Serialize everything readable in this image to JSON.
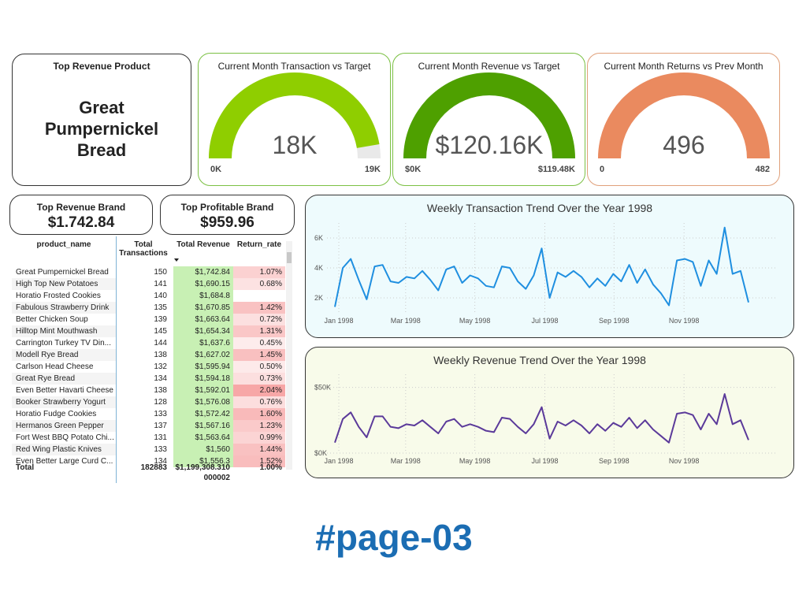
{
  "cards": {
    "top_revenue_product": {
      "title": "Top Revenue Product",
      "value": "Great Pumpernickel Bread"
    },
    "top_revenue_brand": {
      "title": "Top Revenue Brand",
      "value": "$1.742.84"
    },
    "top_profitable_brand": {
      "title": "Top Profitable Brand",
      "value": "$959.96"
    }
  },
  "gauges": [
    {
      "title": "Current Month Transaction vs Target",
      "value": 18000,
      "value_label": "18K",
      "min": {
        "value": 0,
        "label": "0K"
      },
      "max": {
        "value": 19000,
        "label": "19K"
      },
      "color": "#8fce00",
      "border": "#7bc043"
    },
    {
      "title": "Current Month Revenue vs Target",
      "value": 120160,
      "value_label": "$120.16K",
      "min": {
        "value": 0,
        "label": "$0K"
      },
      "max": {
        "value": 119480,
        "label": "$119.48K"
      },
      "color": "#4ea000",
      "border": "#7bc043"
    },
    {
      "title": "Current Month Returns vs Prev Month",
      "value": 496,
      "min": 0,
      "max": 482,
      "color": "#ea8a5f",
      "border": "#e0a07a"
    }
  ],
  "table": {
    "columns": [
      "product_name",
      "Total Transactions",
      "Total Revenue",
      "Return_rate"
    ],
    "rows": [
      [
        "Great Pumpernickel Bread",
        "150",
        "$1,742.84",
        "1.07%"
      ],
      [
        "High Top New Potatoes",
        "141",
        "$1,690.15",
        "0.68%"
      ],
      [
        "Horatio Frosted Cookies",
        "140",
        "$1,684.8",
        null
      ],
      [
        "Fabulous Strawberry Drink",
        "135",
        "$1,670.85",
        "1.42%"
      ],
      [
        "Better Chicken Soup",
        "139",
        "$1,663.64",
        "0.72%"
      ],
      [
        "Hilltop Mint Mouthwash",
        "145",
        "$1,654.34",
        "1.31%"
      ],
      [
        "Carrington Turkey TV Din...",
        "144",
        "$1,637.6",
        "0.45%"
      ],
      [
        "Modell Rye Bread",
        "138",
        "$1,627.02",
        "1.45%"
      ],
      [
        "Carlson Head Cheese",
        "132",
        "$1,595.94",
        "0.50%"
      ],
      [
        "Great Rye Bread",
        "134",
        "$1,594.18",
        "0.73%"
      ],
      [
        "Even Better Havarti Cheese",
        "138",
        "$1,592.01",
        "2.04%"
      ],
      [
        "Booker Strawberry Yogurt",
        "128",
        "$1,576.08",
        "0.76%"
      ],
      [
        "Horatio Fudge Cookies",
        "133",
        "$1,572.42",
        "1.60%"
      ],
      [
        "Hermanos Green Pepper",
        "137",
        "$1,567.16",
        "1.23%"
      ],
      [
        "Fort West BBQ Potato Chi...",
        "131",
        "$1,563.64",
        "0.99%"
      ],
      [
        "Red Wing Plastic Knives",
        "133",
        "$1,560",
        "1.44%"
      ],
      [
        "Even Better Large Curd C...",
        "134",
        "$1,556.3",
        "1.52%"
      ]
    ],
    "total": [
      "Total",
      "182883",
      "$1,199,308.310000002",
      "1.00%"
    ]
  },
  "chart_data": [
    {
      "type": "line",
      "title": "Weekly Transaction Trend Over the Year 1998",
      "x": [
        0,
        1,
        2,
        3,
        4,
        5,
        6,
        7,
        8,
        9,
        10,
        11,
        12,
        13,
        14,
        15,
        16,
        17,
        18,
        19,
        20,
        21,
        22,
        23,
        24,
        25,
        26,
        27,
        28,
        29,
        30,
        31,
        32,
        33,
        34,
        35,
        36,
        37,
        38,
        39,
        40,
        41,
        42,
        43,
        44,
        45,
        46,
        47,
        48,
        49,
        50,
        51,
        52
      ],
      "values": [
        1400,
        4000,
        4600,
        3200,
        1900,
        4100,
        4200,
        3100,
        3000,
        3400,
        3300,
        3800,
        3200,
        2500,
        3900,
        4100,
        3000,
        3500,
        3300,
        2800,
        2700,
        4100,
        4000,
        3100,
        2600,
        3500,
        5300,
        2000,
        3700,
        3400,
        3800,
        3400,
        2700,
        3300,
        2800,
        3600,
        3100,
        4200,
        3000,
        3900,
        2900,
        2300,
        1500,
        4500,
        4600,
        4400,
        2800,
        4500,
        3600,
        6700,
        3600,
        3800,
        1700
      ],
      "color": "#1f8fe0",
      "bg": "#eefbfd",
      "xlim": [
        0,
        52
      ],
      "xticks": [
        {
          "value": 0,
          "label": "Jan 1998"
        },
        {
          "value": 8.4,
          "label": "Mar 1998"
        },
        {
          "value": 17.1,
          "label": "May 1998"
        },
        {
          "value": 25.9,
          "label": "Jul 1998"
        },
        {
          "value": 34.6,
          "label": "Sep 1998"
        },
        {
          "value": 43.4,
          "label": "Nov 1998"
        }
      ],
      "ylim": [
        1000,
        7000
      ],
      "yticks": [
        {
          "value": 2000,
          "label": "2K"
        },
        {
          "value": 4000,
          "label": "4K"
        },
        {
          "value": 6000,
          "label": "6K"
        }
      ],
      "grid": true
    },
    {
      "type": "line",
      "title": "Weekly Revenue Trend Over the Year 1998",
      "x": [
        0,
        1,
        2,
        3,
        4,
        5,
        6,
        7,
        8,
        9,
        10,
        11,
        12,
        13,
        14,
        15,
        16,
        17,
        18,
        19,
        20,
        21,
        22,
        23,
        24,
        25,
        26,
        27,
        28,
        29,
        30,
        31,
        32,
        33,
        34,
        35,
        36,
        37,
        38,
        39,
        40,
        41,
        42,
        43,
        44,
        45,
        46,
        47,
        48,
        49,
        50,
        51,
        52
      ],
      "values": [
        8000,
        26000,
        31000,
        20000,
        12000,
        28000,
        28000,
        20000,
        19000,
        22000,
        21000,
        25000,
        20000,
        15000,
        24000,
        26000,
        20000,
        22000,
        20000,
        17000,
        16000,
        27000,
        26000,
        20000,
        15000,
        22000,
        35000,
        11000,
        24000,
        21000,
        25000,
        21000,
        15000,
        22000,
        17000,
        23000,
        20000,
        27000,
        19000,
        25000,
        18000,
        13000,
        8000,
        30000,
        31000,
        29000,
        18000,
        30000,
        22000,
        45000,
        22000,
        25000,
        10000
      ],
      "color": "#5b3a9a",
      "bg": "#f8fbea",
      "xlim": [
        0,
        52
      ],
      "xticks": [
        {
          "value": 0,
          "label": "Jan 1998"
        },
        {
          "value": 8.4,
          "label": "Mar 1998"
        },
        {
          "value": 17.1,
          "label": "May 1998"
        },
        {
          "value": 25.9,
          "label": "Jul 1998"
        },
        {
          "value": 34.6,
          "label": "Sep 1998"
        },
        {
          "value": 43.4,
          "label": "Nov 1998"
        }
      ],
      "ylim": [
        0,
        60000
      ],
      "yticks": [
        {
          "value": 0,
          "label": "$0K"
        },
        {
          "value": 50000,
          "label": "$50K"
        }
      ],
      "grid": true
    }
  ],
  "footer": "#page-03"
}
